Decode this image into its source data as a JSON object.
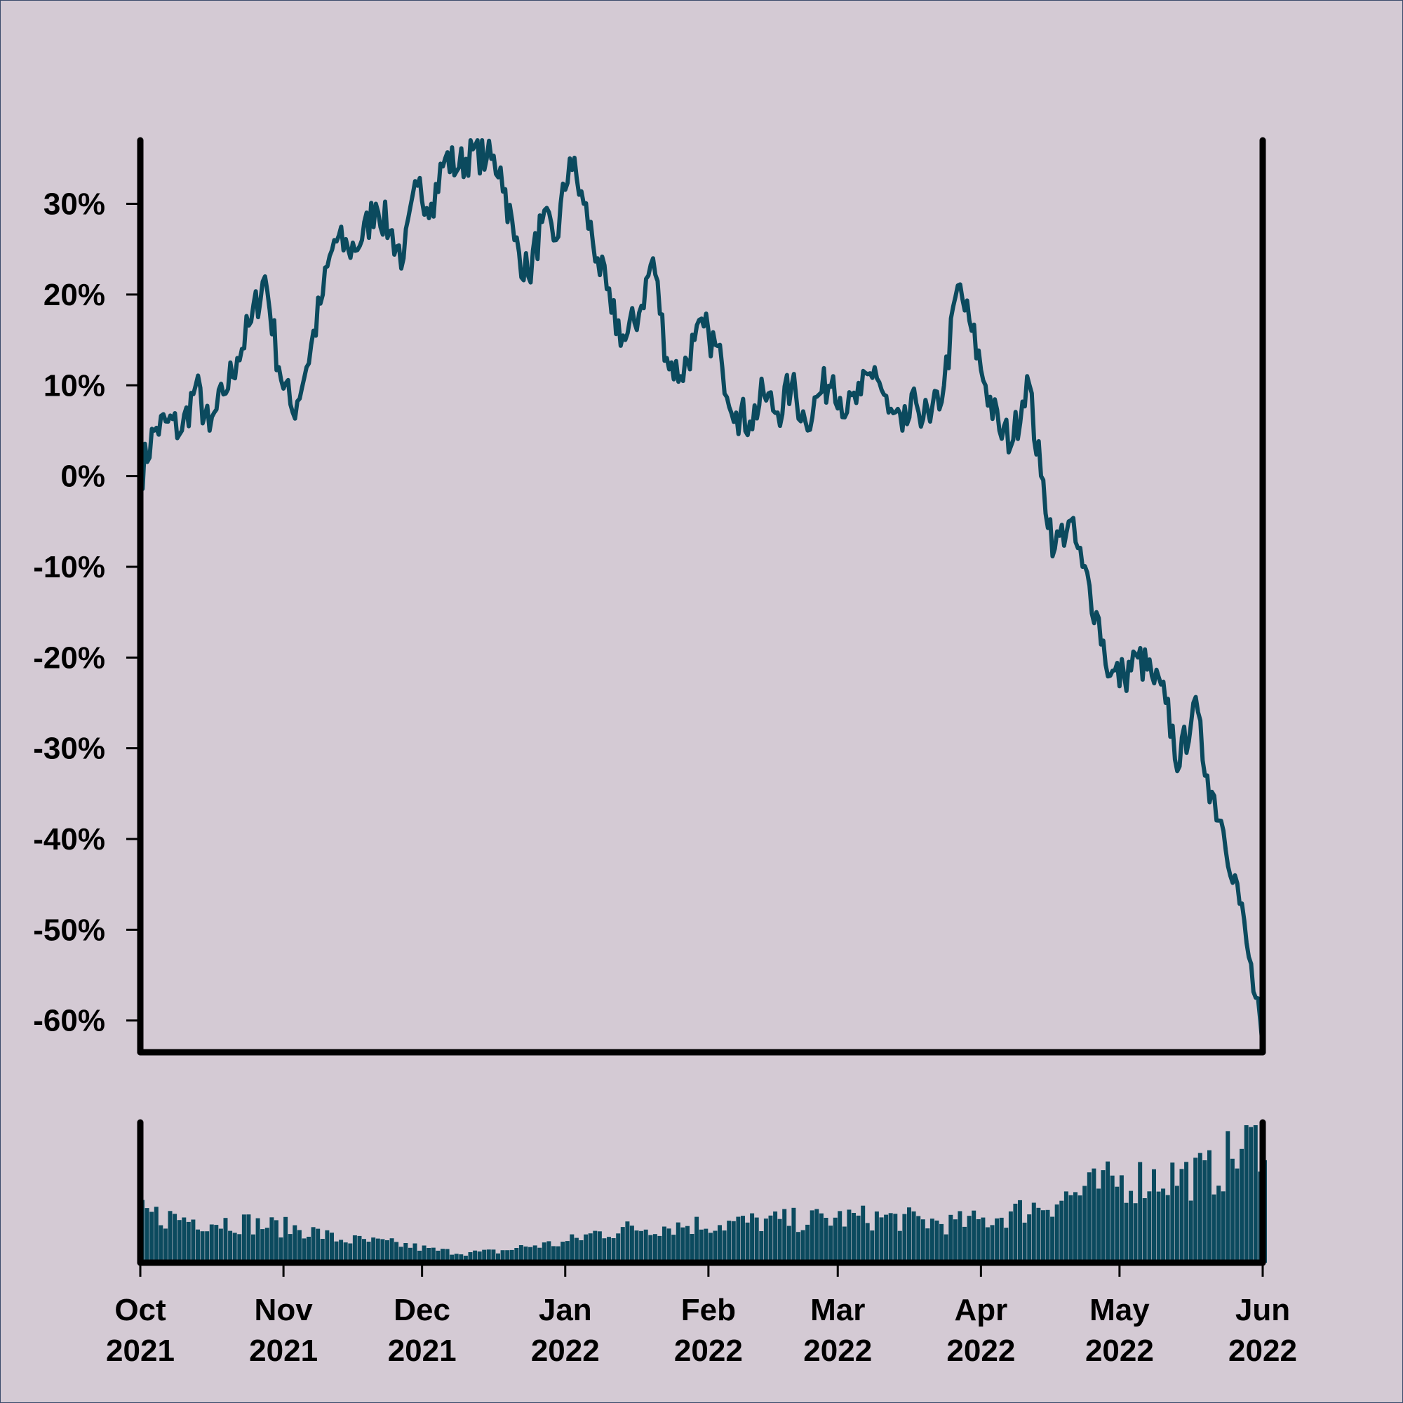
{
  "chart_data": [
    {
      "type": "line",
      "panel": "price-change",
      "title": "",
      "xlabel": "",
      "ylabel": "",
      "y_unit": "%",
      "ylim": [
        -63.5,
        37
      ],
      "y_ticks": [
        -60,
        -50,
        -40,
        -30,
        -20,
        -10,
        0,
        10,
        20,
        30
      ],
      "y_tick_labels": [
        "-60%",
        "-50%",
        "-40%",
        "-30%",
        "-20%",
        "-10%",
        "0%",
        "10%",
        "20%",
        "30%"
      ],
      "xlim": [
        "2021-10-01",
        "2022-06-01"
      ],
      "grid": false,
      "legend": "none",
      "line_color": "#0b4a5e",
      "series": [
        {
          "points": [
            [
              "2021-10-01",
              0
            ],
            [
              "2021-10-04",
              5
            ],
            [
              "2021-10-07",
              6
            ],
            [
              "2021-10-10",
              5
            ],
            [
              "2021-10-13",
              10
            ],
            [
              "2021-10-16",
              5
            ],
            [
              "2021-10-19",
              9
            ],
            [
              "2021-10-22",
              13
            ],
            [
              "2021-10-25",
              17
            ],
            [
              "2021-10-28",
              22
            ],
            [
              "2021-10-31",
              12
            ],
            [
              "2021-11-03",
              7
            ],
            [
              "2021-11-06",
              12
            ],
            [
              "2021-11-09",
              19
            ],
            [
              "2021-11-12",
              26
            ],
            [
              "2021-11-15",
              25
            ],
            [
              "2021-11-18",
              26
            ],
            [
              "2021-11-21",
              30
            ],
            [
              "2021-11-24",
              27
            ],
            [
              "2021-11-27",
              24
            ],
            [
              "2021-11-30",
              32
            ],
            [
              "2021-12-03",
              30
            ],
            [
              "2021-12-06",
              35
            ],
            [
              "2021-12-09",
              34
            ],
            [
              "2021-12-12",
              36
            ],
            [
              "2021-12-15",
              35
            ],
            [
              "2021-12-18",
              34
            ],
            [
              "2021-12-21",
              26
            ],
            [
              "2021-12-24",
              22
            ],
            [
              "2021-12-27",
              28
            ],
            [
              "2021-12-30",
              26
            ],
            [
              "2022-01-02",
              35
            ],
            [
              "2022-01-05",
              30
            ],
            [
              "2022-01-08",
              24
            ],
            [
              "2022-01-11",
              18
            ],
            [
              "2022-01-14",
              15
            ],
            [
              "2022-01-17",
              18
            ],
            [
              "2022-01-20",
              24
            ],
            [
              "2022-01-23",
              13
            ],
            [
              "2022-01-26",
              11
            ],
            [
              "2022-01-29",
              15
            ],
            [
              "2022-02-01",
              16
            ],
            [
              "2022-02-04",
              12
            ],
            [
              "2022-02-07",
              7
            ],
            [
              "2022-02-10",
              6
            ],
            [
              "2022-02-13",
              9
            ],
            [
              "2022-02-16",
              7
            ],
            [
              "2022-02-19",
              10
            ],
            [
              "2022-02-22",
              6
            ],
            [
              "2022-02-25",
              9
            ],
            [
              "2022-02-28",
              11
            ],
            [
              "2022-03-03",
              7
            ],
            [
              "2022-03-06",
              9
            ],
            [
              "2022-03-09",
              12
            ],
            [
              "2022-03-12",
              7
            ],
            [
              "2022-03-15",
              5
            ],
            [
              "2022-03-18",
              8
            ],
            [
              "2022-03-21",
              6
            ],
            [
              "2022-03-24",
              10
            ],
            [
              "2022-03-27",
              21
            ],
            [
              "2022-03-30",
              16
            ],
            [
              "2022-04-02",
              10
            ],
            [
              "2022-04-05",
              5
            ],
            [
              "2022-04-08",
              4
            ],
            [
              "2022-04-11",
              11
            ],
            [
              "2022-04-14",
              0
            ],
            [
              "2022-04-17",
              -8
            ],
            [
              "2022-04-20",
              -5
            ],
            [
              "2022-04-23",
              -10
            ],
            [
              "2022-04-26",
              -15
            ],
            [
              "2022-04-29",
              -22
            ],
            [
              "2022-05-02",
              -22
            ],
            [
              "2022-05-05",
              -20
            ],
            [
              "2022-05-08",
              -22
            ],
            [
              "2022-05-11",
              -25
            ],
            [
              "2022-05-14",
              -32
            ],
            [
              "2022-05-17",
              -25
            ],
            [
              "2022-05-20",
              -33
            ],
            [
              "2022-05-23",
              -38
            ],
            [
              "2022-05-26",
              -44
            ],
            [
              "2022-05-29",
              -53
            ],
            [
              "2022-06-01",
              -63
            ]
          ]
        }
      ]
    },
    {
      "type": "bar",
      "panel": "volume",
      "title": "",
      "xlabel": "",
      "ylabel": "",
      "y_ticks": [],
      "grid": false,
      "bar_color": "#0b4a5e",
      "x_ticks": [
        {
          "date": "2021-10-01",
          "month": "Oct",
          "year": "2021"
        },
        {
          "date": "2021-11-01",
          "month": "Nov",
          "year": "2021"
        },
        {
          "date": "2021-12-01",
          "month": "Dec",
          "year": "2021"
        },
        {
          "date": "2022-01-01",
          "month": "Jan",
          "year": "2022"
        },
        {
          "date": "2022-02-01",
          "month": "Feb",
          "year": "2022"
        },
        {
          "date": "2022-03-01",
          "month": "Mar",
          "year": "2022"
        },
        {
          "date": "2022-04-01",
          "month": "Apr",
          "year": "2022"
        },
        {
          "date": "2022-05-01",
          "month": "May",
          "year": "2022"
        },
        {
          "date": "2022-06-01",
          "month": "Jun",
          "year": "2022"
        }
      ],
      "series": [
        {
          "points": [
            [
              "2021-10-01",
              0.35
            ],
            [
              "2021-10-08",
              0.32
            ],
            [
              "2021-10-15",
              0.3
            ],
            [
              "2021-10-22",
              0.29
            ],
            [
              "2021-10-29",
              0.26
            ],
            [
              "2021-11-05",
              0.24
            ],
            [
              "2021-11-12",
              0.17
            ],
            [
              "2021-11-19",
              0.15
            ],
            [
              "2021-11-26",
              0.13
            ],
            [
              "2021-12-03",
              0.09
            ],
            [
              "2021-12-10",
              0.07
            ],
            [
              "2021-12-17",
              0.08
            ],
            [
              "2021-12-24",
              0.12
            ],
            [
              "2021-12-31",
              0.14
            ],
            [
              "2022-01-07",
              0.21
            ],
            [
              "2022-01-14",
              0.24
            ],
            [
              "2022-01-21",
              0.26
            ],
            [
              "2022-01-28",
              0.27
            ],
            [
              "2022-02-04",
              0.28
            ],
            [
              "2022-02-11",
              0.29
            ],
            [
              "2022-02-18",
              0.3
            ],
            [
              "2022-02-25",
              0.31
            ],
            [
              "2022-03-04",
              0.32
            ],
            [
              "2022-03-11",
              0.32
            ],
            [
              "2022-03-18",
              0.3
            ],
            [
              "2022-03-25",
              0.28
            ],
            [
              "2022-04-01",
              0.3
            ],
            [
              "2022-04-08",
              0.36
            ],
            [
              "2022-04-15",
              0.43
            ],
            [
              "2022-04-22",
              0.5
            ],
            [
              "2022-04-29",
              0.57
            ],
            [
              "2022-05-06",
              0.6
            ],
            [
              "2022-05-13",
              0.62
            ],
            [
              "2022-05-20",
              0.63
            ],
            [
              "2022-05-27",
              0.8
            ],
            [
              "2022-06-01",
              0.95
            ]
          ]
        }
      ]
    }
  ]
}
